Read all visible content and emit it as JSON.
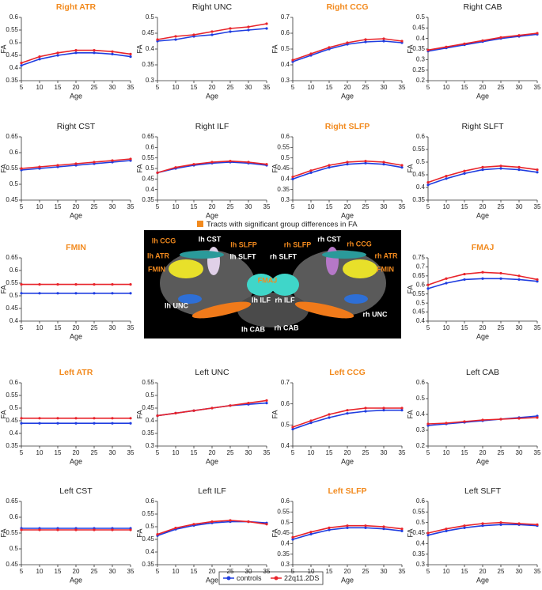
{
  "legend": [
    {
      "name": "controls",
      "color": "#1f3de0"
    },
    {
      "name": "22q11.2DS",
      "color": "#e8232a"
    }
  ],
  "brain_image": {
    "caption": "Tracts with significant group differences in FA",
    "caption_color": "#f28a1e",
    "labels": [
      {
        "text": "lh CCG",
        "color": "#f28a1e"
      },
      {
        "text": "lh CST",
        "color": "#ffffff"
      },
      {
        "text": "lh ATR",
        "color": "#f28a1e"
      },
      {
        "text": "lh SLFP",
        "color": "#f28a1e"
      },
      {
        "text": "lh SLFT",
        "color": "#ffffff"
      },
      {
        "text": "FMIN",
        "color": "#f28a1e"
      },
      {
        "text": "FMAJ",
        "color": "#f28a1e"
      },
      {
        "text": "rh SLFT",
        "color": "#ffffff"
      },
      {
        "text": "rh CST",
        "color": "#ffffff"
      },
      {
        "text": "rh CCG",
        "color": "#f28a1e"
      },
      {
        "text": "rh SLFP",
        "color": "#f28a1e"
      },
      {
        "text": "rh ATR",
        "color": "#f28a1e"
      },
      {
        "text": "FMIN",
        "color": "#f28a1e"
      },
      {
        "text": "lh ILF",
        "color": "#ffffff"
      },
      {
        "text": "rh ILF",
        "color": "#ffffff"
      },
      {
        "text": "lh UNC",
        "color": "#ffffff"
      },
      {
        "text": "rh UNC",
        "color": "#ffffff"
      },
      {
        "text": "lh CAB",
        "color": "#ffffff"
      },
      {
        "text": "rh CAB",
        "color": "#ffffff"
      }
    ]
  },
  "chart_data": [
    {
      "type": "line",
      "title": "Right ATR",
      "title_color": "#f28a1e",
      "x_label": "Age",
      "y_label": "FA",
      "x": [
        5,
        10,
        15,
        20,
        25,
        30,
        35
      ],
      "xlim": [
        5,
        35
      ],
      "xticks": [
        5,
        10,
        15,
        20,
        25,
        30,
        35
      ],
      "ylim": [
        0.35,
        0.6
      ],
      "yticks": [
        0.35,
        0.4,
        0.45,
        0.5,
        0.55,
        0.6
      ],
      "series": [
        {
          "values": [
            0.41,
            0.435,
            0.45,
            0.46,
            0.46,
            0.455,
            0.445
          ]
        },
        {
          "values": [
            0.42,
            0.445,
            0.46,
            0.47,
            0.47,
            0.465,
            0.455
          ]
        }
      ]
    },
    {
      "type": "line",
      "title": "Right UNC",
      "title_color": "#222222",
      "x_label": "Age",
      "y_label": "FA",
      "x": [
        5,
        10,
        15,
        20,
        25,
        30,
        35
      ],
      "xlim": [
        5,
        35
      ],
      "xticks": [
        5,
        10,
        15,
        20,
        25,
        30,
        35
      ],
      "ylim": [
        0.3,
        0.5
      ],
      "yticks": [
        0.3,
        0.35,
        0.4,
        0.45,
        0.5
      ],
      "series": [
        {
          "values": [
            0.425,
            0.43,
            0.44,
            0.445,
            0.455,
            0.46,
            0.465
          ]
        },
        {
          "values": [
            0.43,
            0.44,
            0.445,
            0.455,
            0.465,
            0.47,
            0.48
          ]
        }
      ]
    },
    {
      "type": "line",
      "title": "Right CCG",
      "title_color": "#f28a1e",
      "x_label": "Age",
      "y_label": "FA",
      "x": [
        5,
        10,
        15,
        20,
        25,
        30,
        35
      ],
      "xlim": [
        5,
        35
      ],
      "xticks": [
        5,
        10,
        15,
        20,
        25,
        30,
        35
      ],
      "ylim": [
        0.3,
        0.7
      ],
      "yticks": [
        0.3,
        0.4,
        0.5,
        0.6,
        0.7
      ],
      "series": [
        {
          "values": [
            0.42,
            0.46,
            0.5,
            0.53,
            0.545,
            0.55,
            0.54
          ]
        },
        {
          "values": [
            0.43,
            0.47,
            0.51,
            0.54,
            0.56,
            0.565,
            0.55
          ]
        }
      ]
    },
    {
      "type": "line",
      "title": "Right CAB",
      "title_color": "#222222",
      "x_label": "Age",
      "y_label": "FA",
      "x": [
        5,
        10,
        15,
        20,
        25,
        30,
        35
      ],
      "xlim": [
        5,
        35
      ],
      "xticks": [
        5,
        10,
        15,
        20,
        25,
        30,
        35
      ],
      "ylim": [
        0.2,
        0.5
      ],
      "yticks": [
        0.2,
        0.25,
        0.3,
        0.35,
        0.4,
        0.45,
        0.5
      ],
      "series": [
        {
          "values": [
            0.34,
            0.355,
            0.37,
            0.385,
            0.4,
            0.41,
            0.42
          ]
        },
        {
          "values": [
            0.345,
            0.36,
            0.375,
            0.39,
            0.405,
            0.415,
            0.425
          ]
        }
      ]
    },
    {
      "type": "line",
      "title": "Right CST",
      "title_color": "#222222",
      "x_label": "Age",
      "y_label": "FA",
      "x": [
        5,
        10,
        15,
        20,
        25,
        30,
        35
      ],
      "xlim": [
        5,
        35
      ],
      "xticks": [
        5,
        10,
        15,
        20,
        25,
        30,
        35
      ],
      "ylim": [
        0.45,
        0.65
      ],
      "yticks": [
        0.45,
        0.5,
        0.55,
        0.6,
        0.65
      ],
      "series": [
        {
          "values": [
            0.545,
            0.55,
            0.555,
            0.56,
            0.565,
            0.57,
            0.575
          ]
        },
        {
          "values": [
            0.55,
            0.555,
            0.56,
            0.565,
            0.57,
            0.575,
            0.58
          ]
        }
      ]
    },
    {
      "type": "line",
      "title": "Right ILF",
      "title_color": "#222222",
      "x_label": "Age",
      "y_label": "FA",
      "x": [
        5,
        10,
        15,
        20,
        25,
        30,
        35
      ],
      "xlim": [
        5,
        35
      ],
      "xticks": [
        5,
        10,
        15,
        20,
        25,
        30,
        35
      ],
      "ylim": [
        0.35,
        0.65
      ],
      "yticks": [
        0.35,
        0.4,
        0.45,
        0.5,
        0.55,
        0.6,
        0.65
      ],
      "series": [
        {
          "values": [
            0.48,
            0.5,
            0.515,
            0.525,
            0.53,
            0.525,
            0.515
          ]
        },
        {
          "values": [
            0.48,
            0.505,
            0.52,
            0.53,
            0.535,
            0.53,
            0.52
          ]
        }
      ]
    },
    {
      "type": "line",
      "title": "Right SLFP",
      "title_color": "#f28a1e",
      "x_label": "Age",
      "y_label": "FA",
      "x": [
        5,
        10,
        15,
        20,
        25,
        30,
        35
      ],
      "xlim": [
        5,
        35
      ],
      "xticks": [
        5,
        10,
        15,
        20,
        25,
        30,
        35
      ],
      "ylim": [
        0.3,
        0.6
      ],
      "yticks": [
        0.3,
        0.35,
        0.4,
        0.45,
        0.5,
        0.55,
        0.6
      ],
      "series": [
        {
          "values": [
            0.4,
            0.43,
            0.455,
            0.47,
            0.475,
            0.47,
            0.455
          ]
        },
        {
          "values": [
            0.41,
            0.44,
            0.465,
            0.48,
            0.485,
            0.48,
            0.465
          ]
        }
      ]
    },
    {
      "type": "line",
      "title": "Right SLFT",
      "title_color": "#222222",
      "x_label": "Age",
      "y_label": "FA",
      "x": [
        5,
        10,
        15,
        20,
        25,
        30,
        35
      ],
      "xlim": [
        5,
        35
      ],
      "xticks": [
        5,
        10,
        15,
        20,
        25,
        30,
        35
      ],
      "ylim": [
        0.35,
        0.6
      ],
      "yticks": [
        0.35,
        0.4,
        0.45,
        0.5,
        0.55,
        0.6
      ],
      "series": [
        {
          "values": [
            0.41,
            0.435,
            0.455,
            0.47,
            0.475,
            0.47,
            0.46
          ]
        },
        {
          "values": [
            0.42,
            0.445,
            0.465,
            0.48,
            0.485,
            0.48,
            0.47
          ]
        }
      ]
    },
    {
      "type": "line",
      "title": "FMIN",
      "title_color": "#f28a1e",
      "x_label": "Age",
      "y_label": "FA",
      "x": [
        5,
        10,
        15,
        20,
        25,
        30,
        35
      ],
      "xlim": [
        5,
        35
      ],
      "xticks": [
        5,
        10,
        15,
        20,
        25,
        30,
        35
      ],
      "ylim": [
        0.4,
        0.65
      ],
      "yticks": [
        0.4,
        0.45,
        0.5,
        0.55,
        0.6,
        0.65
      ],
      "series": [
        {
          "values": [
            0.51,
            0.51,
            0.51,
            0.51,
            0.51,
            0.51,
            0.51
          ]
        },
        {
          "values": [
            0.545,
            0.545,
            0.545,
            0.545,
            0.545,
            0.545,
            0.545
          ]
        }
      ]
    },
    {
      "type": "line",
      "title": "FMAJ",
      "title_color": "#f28a1e",
      "x_label": "Age",
      "y_label": "FA",
      "x": [
        5,
        10,
        15,
        20,
        25,
        30,
        35
      ],
      "xlim": [
        5,
        35
      ],
      "xticks": [
        5,
        10,
        15,
        20,
        25,
        30,
        35
      ],
      "ylim": [
        0.4,
        0.75
      ],
      "yticks": [
        0.4,
        0.45,
        0.5,
        0.55,
        0.6,
        0.65,
        0.7,
        0.75
      ],
      "series": [
        {
          "values": [
            0.58,
            0.61,
            0.63,
            0.635,
            0.635,
            0.63,
            0.62
          ]
        },
        {
          "values": [
            0.6,
            0.635,
            0.66,
            0.67,
            0.665,
            0.65,
            0.63
          ]
        }
      ]
    },
    {
      "type": "line",
      "title": "Left ATR",
      "title_color": "#f28a1e",
      "x_label": "Age",
      "y_label": "FA",
      "x": [
        5,
        10,
        15,
        20,
        25,
        30,
        35
      ],
      "xlim": [
        5,
        35
      ],
      "xticks": [
        5,
        10,
        15,
        20,
        25,
        30,
        35
      ],
      "ylim": [
        0.35,
        0.6
      ],
      "yticks": [
        0.35,
        0.4,
        0.45,
        0.5,
        0.55,
        0.6
      ],
      "series": [
        {
          "values": [
            0.44,
            0.44,
            0.44,
            0.44,
            0.44,
            0.44,
            0.44
          ]
        },
        {
          "values": [
            0.46,
            0.46,
            0.46,
            0.46,
            0.46,
            0.46,
            0.46
          ]
        }
      ]
    },
    {
      "type": "line",
      "title": "Left UNC",
      "title_color": "#222222",
      "x_label": "Age",
      "y_label": "FA",
      "x": [
        5,
        10,
        15,
        20,
        25,
        30,
        35
      ],
      "xlim": [
        5,
        35
      ],
      "xticks": [
        5,
        10,
        15,
        20,
        25,
        30,
        35
      ],
      "ylim": [
        0.3,
        0.55
      ],
      "yticks": [
        0.3,
        0.35,
        0.4,
        0.45,
        0.5,
        0.55
      ],
      "series": [
        {
          "values": [
            0.42,
            0.43,
            0.44,
            0.45,
            0.46,
            0.465,
            0.47
          ]
        },
        {
          "values": [
            0.42,
            0.43,
            0.44,
            0.45,
            0.46,
            0.47,
            0.48
          ]
        }
      ]
    },
    {
      "type": "line",
      "title": "Left CCG",
      "title_color": "#f28a1e",
      "x_label": "Age",
      "y_label": "FA",
      "x": [
        5,
        10,
        15,
        20,
        25,
        30,
        35
      ],
      "xlim": [
        5,
        35
      ],
      "xticks": [
        5,
        10,
        15,
        20,
        25,
        30,
        35
      ],
      "ylim": [
        0.4,
        0.7
      ],
      "yticks": [
        0.4,
        0.5,
        0.6,
        0.7
      ],
      "series": [
        {
          "values": [
            0.48,
            0.51,
            0.535,
            0.555,
            0.565,
            0.57,
            0.57
          ]
        },
        {
          "values": [
            0.49,
            0.52,
            0.55,
            0.57,
            0.58,
            0.58,
            0.58
          ]
        }
      ]
    },
    {
      "type": "line",
      "title": "Left CAB",
      "title_color": "#222222",
      "x_label": "Age",
      "y_label": "FA",
      "x": [
        5,
        10,
        15,
        20,
        25,
        30,
        35
      ],
      "xlim": [
        5,
        35
      ],
      "xticks": [
        5,
        10,
        15,
        20,
        25,
        30,
        35
      ],
      "ylim": [
        0.2,
        0.6
      ],
      "yticks": [
        0.2,
        0.3,
        0.4,
        0.5,
        0.6
      ],
      "series": [
        {
          "values": [
            0.33,
            0.34,
            0.35,
            0.36,
            0.37,
            0.38,
            0.39
          ]
        },
        {
          "values": [
            0.34,
            0.345,
            0.355,
            0.365,
            0.37,
            0.375,
            0.38
          ]
        }
      ]
    },
    {
      "type": "line",
      "title": "Left CST",
      "title_color": "#222222",
      "x_label": "Age",
      "y_label": "FA",
      "x": [
        5,
        10,
        15,
        20,
        25,
        30,
        35
      ],
      "xlim": [
        5,
        35
      ],
      "xticks": [
        5,
        10,
        15,
        20,
        25,
        30,
        35
      ],
      "ylim": [
        0.45,
        0.65
      ],
      "yticks": [
        0.45,
        0.5,
        0.55,
        0.6,
        0.65
      ],
      "series": [
        {
          "values": [
            0.565,
            0.565,
            0.565,
            0.565,
            0.565,
            0.565,
            0.565
          ]
        },
        {
          "values": [
            0.56,
            0.56,
            0.56,
            0.56,
            0.56,
            0.56,
            0.56
          ]
        }
      ]
    },
    {
      "type": "line",
      "title": "Left ILF",
      "title_color": "#222222",
      "x_label": "Age",
      "y_label": "FA",
      "x": [
        5,
        10,
        15,
        20,
        25,
        30,
        35
      ],
      "xlim": [
        5,
        35
      ],
      "xticks": [
        5,
        10,
        15,
        20,
        25,
        30,
        35
      ],
      "ylim": [
        0.35,
        0.6
      ],
      "yticks": [
        0.35,
        0.4,
        0.45,
        0.5,
        0.55,
        0.6
      ],
      "series": [
        {
          "values": [
            0.465,
            0.49,
            0.505,
            0.515,
            0.52,
            0.52,
            0.515
          ]
        },
        {
          "values": [
            0.47,
            0.495,
            0.51,
            0.52,
            0.525,
            0.52,
            0.51
          ]
        }
      ]
    },
    {
      "type": "line",
      "title": "Left SLFP",
      "title_color": "#f28a1e",
      "x_label": "Age",
      "y_label": "FA",
      "x": [
        5,
        10,
        15,
        20,
        25,
        30,
        35
      ],
      "xlim": [
        5,
        35
      ],
      "xticks": [
        5,
        10,
        15,
        20,
        25,
        30,
        35
      ],
      "ylim": [
        0.3,
        0.6
      ],
      "yticks": [
        0.3,
        0.35,
        0.4,
        0.45,
        0.5,
        0.55,
        0.6
      ],
      "series": [
        {
          "values": [
            0.42,
            0.445,
            0.465,
            0.475,
            0.475,
            0.47,
            0.46
          ]
        },
        {
          "values": [
            0.43,
            0.455,
            0.475,
            0.485,
            0.485,
            0.48,
            0.47
          ]
        }
      ]
    },
    {
      "type": "line",
      "title": "Left SLFT",
      "title_color": "#222222",
      "x_label": "Age",
      "y_label": "FA",
      "x": [
        5,
        10,
        15,
        20,
        25,
        30,
        35
      ],
      "xlim": [
        5,
        35
      ],
      "xticks": [
        5,
        10,
        15,
        20,
        25,
        30,
        35
      ],
      "ylim": [
        0.3,
        0.6
      ],
      "yticks": [
        0.3,
        0.35,
        0.4,
        0.45,
        0.5,
        0.55,
        0.6
      ],
      "series": [
        {
          "values": [
            0.44,
            0.46,
            0.475,
            0.485,
            0.49,
            0.49,
            0.485
          ]
        },
        {
          "values": [
            0.45,
            0.47,
            0.485,
            0.495,
            0.5,
            0.495,
            0.49
          ]
        }
      ]
    }
  ]
}
